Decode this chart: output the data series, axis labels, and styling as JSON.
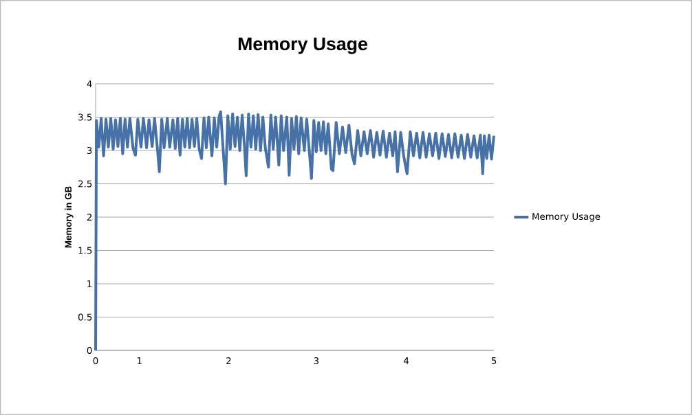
{
  "chart_data": {
    "type": "line",
    "title": "Memory Usage",
    "ylabel": "Memory in GB",
    "xlim": [
      0,
      5
    ],
    "xticks": [
      {
        "value": 0,
        "label": "0"
      },
      {
        "value": 0.55,
        "label": "1"
      },
      {
        "value": 1.67,
        "label": "2"
      },
      {
        "value": 2.77,
        "label": "3"
      },
      {
        "value": 3.9,
        "label": "4"
      },
      {
        "value": 5,
        "label": "5"
      }
    ],
    "ylim": [
      0,
      4
    ],
    "yticks": [
      0,
      0.5,
      1,
      1.5,
      2,
      2.5,
      3,
      3.5,
      4
    ],
    "grid": "y",
    "legend": "right",
    "marker": "none",
    "line_style": "solid",
    "series": [
      {
        "name": "Memory Usage",
        "color": "#4672a8",
        "x": [
          0,
          0.01,
          0.04,
          0.07,
          0.1,
          0.13,
          0.16,
          0.19,
          0.22,
          0.25,
          0.28,
          0.31,
          0.34,
          0.37,
          0.4,
          0.43,
          0.47,
          0.5,
          0.53,
          0.57,
          0.6,
          0.64,
          0.67,
          0.71,
          0.74,
          0.78,
          0.8,
          0.83,
          0.86,
          0.9,
          0.93,
          0.97,
          1.0,
          1.03,
          1.06,
          1.09,
          1.12,
          1.15,
          1.18,
          1.21,
          1.24,
          1.27,
          1.3,
          1.33,
          1.36,
          1.39,
          1.42,
          1.46,
          1.49,
          1.52,
          1.55,
          1.57,
          1.6,
          1.63,
          1.66,
          1.69,
          1.72,
          1.75,
          1.78,
          1.81,
          1.84,
          1.87,
          1.89,
          1.92,
          1.95,
          1.98,
          2.01,
          2.04,
          2.07,
          2.1,
          2.13,
          2.17,
          2.2,
          2.23,
          2.26,
          2.3,
          2.33,
          2.36,
          2.4,
          2.43,
          2.46,
          2.49,
          2.52,
          2.55,
          2.58,
          2.62,
          2.65,
          2.68,
          2.71,
          2.74,
          2.77,
          2.8,
          2.83,
          2.86,
          2.89,
          2.92,
          2.96,
          2.98,
          3.02,
          3.06,
          3.1,
          3.14,
          3.18,
          3.22,
          3.25,
          3.29,
          3.33,
          3.37,
          3.41,
          3.45,
          3.49,
          3.53,
          3.57,
          3.61,
          3.65,
          3.69,
          3.73,
          3.76,
          3.79,
          3.83,
          3.87,
          3.91,
          3.95,
          3.99,
          4.03,
          4.07,
          4.11,
          4.15,
          4.19,
          4.23,
          4.27,
          4.31,
          4.35,
          4.39,
          4.43,
          4.47,
          4.51,
          4.55,
          4.59,
          4.63,
          4.67,
          4.71,
          4.75,
          4.79,
          4.83,
          4.86,
          4.88,
          4.91,
          4.94,
          4.97,
          5.0
        ],
        "values": [
          0,
          3.45,
          3.05,
          3.48,
          2.92,
          3.47,
          3.05,
          3.48,
          3.02,
          3.46,
          3.06,
          3.48,
          2.95,
          3.47,
          3.05,
          3.48,
          3.03,
          2.93,
          3.47,
          3.05,
          3.48,
          3.04,
          3.46,
          3.06,
          3.48,
          2.97,
          2.68,
          3.47,
          3.04,
          3.48,
          3.05,
          3.46,
          3.03,
          3.48,
          2.93,
          3.47,
          3.05,
          3.48,
          3.04,
          3.47,
          3.06,
          3.48,
          3.02,
          2.88,
          3.49,
          3.04,
          3.5,
          2.92,
          3.49,
          3.05,
          3.51,
          3.58,
          3.03,
          2.5,
          3.52,
          3.02,
          3.55,
          3.06,
          3.5,
          3.0,
          3.53,
          3.04,
          2.62,
          3.55,
          3.05,
          3.52,
          3.02,
          3.54,
          3.0,
          3.5,
          3.04,
          2.75,
          3.53,
          3.02,
          3.5,
          2.78,
          3.52,
          3.0,
          3.5,
          2.63,
          3.48,
          3.02,
          3.51,
          2.95,
          3.49,
          3.0,
          3.47,
          3.03,
          2.58,
          3.45,
          2.98,
          3.42,
          3.0,
          3.43,
          2.95,
          3.4,
          2.72,
          2.7,
          3.42,
          2.95,
          3.35,
          2.97,
          3.38,
          2.93,
          2.8,
          3.3,
          2.92,
          3.28,
          2.95,
          3.3,
          2.9,
          3.27,
          2.93,
          3.29,
          2.9,
          3.26,
          2.92,
          3.28,
          2.68,
          3.27,
          2.9,
          2.65,
          3.28,
          2.92,
          3.26,
          2.89,
          3.27,
          2.9,
          3.25,
          2.92,
          3.26,
          2.88,
          3.25,
          2.91,
          3.24,
          2.89,
          3.25,
          2.9,
          3.23,
          2.88,
          3.24,
          2.9,
          3.22,
          2.89,
          3.23,
          2.65,
          3.22,
          2.88,
          3.23,
          2.87,
          3.22
        ]
      }
    ]
  }
}
